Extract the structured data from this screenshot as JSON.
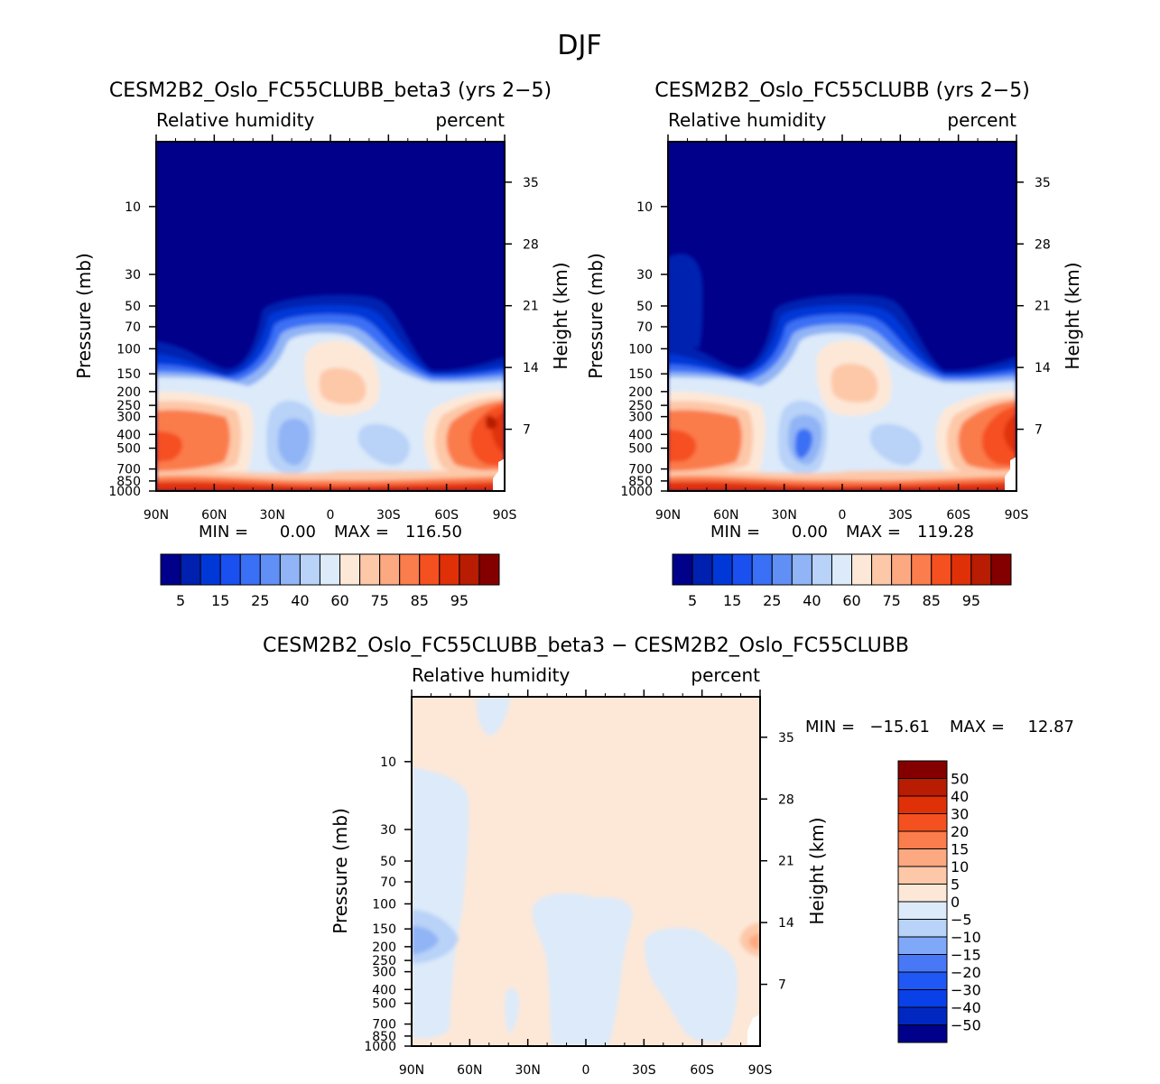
{
  "figure_title": "DJF",
  "chart_data": [
    {
      "type": "heatmap",
      "id": "p1",
      "title": "CESM2B2_Oslo_FC55CLUBB_beta3 (yrs 2−5)",
      "left_label": "Relative humidity",
      "right_label": "percent",
      "ylabel": "Pressure (mb)",
      "y2label": "Height (km)",
      "x_ticks": [
        "90N",
        "60N",
        "30N",
        "0",
        "30S",
        "60S",
        "90S"
      ],
      "y_ticks": [
        1000,
        850,
        700,
        500,
        400,
        300,
        250,
        200,
        150,
        100,
        70,
        50,
        30,
        10
      ],
      "y2_ticks": [
        7,
        14,
        21,
        28,
        35
      ],
      "ylim": [
        1000,
        3.5
      ],
      "min_label": "MIN =",
      "min_value": "0.00",
      "max_label": "MAX =",
      "max_value": "116.50",
      "colorbar": {
        "orientation": "horizontal",
        "colors": [
          "#00008a",
          "#0020b0",
          "#0038d8",
          "#1a50f0",
          "#3a70f5",
          "#6090f5",
          "#90b4f5",
          "#b8d2f8",
          "#dceafa",
          "#fde8d8",
          "#fdc8a8",
          "#fca880",
          "#fb7c4c",
          "#f55020",
          "#e03008",
          "#b81c02",
          "#840000"
        ],
        "labels": [
          "5",
          "15",
          "25",
          "40",
          "60",
          "75",
          "85",
          "95"
        ]
      }
    },
    {
      "type": "heatmap",
      "id": "p2",
      "title": "CESM2B2_Oslo_FC55CLUBB (yrs 2−5)",
      "left_label": "Relative humidity",
      "right_label": "percent",
      "ylabel": "Pressure (mb)",
      "y2label": "Height (km)",
      "x_ticks": [
        "90N",
        "60N",
        "30N",
        "0",
        "30S",
        "60S",
        "90S"
      ],
      "y_ticks": [
        1000,
        850,
        700,
        500,
        400,
        300,
        250,
        200,
        150,
        100,
        70,
        50,
        30,
        10
      ],
      "y2_ticks": [
        7,
        14,
        21,
        28,
        35
      ],
      "ylim": [
        1000,
        3.5
      ],
      "min_label": "MIN =",
      "min_value": "0.00",
      "max_label": "MAX =",
      "max_value": "119.28",
      "colorbar": {
        "orientation": "horizontal",
        "colors": [
          "#00008a",
          "#0020b0",
          "#0038d8",
          "#1a50f0",
          "#3a70f5",
          "#6090f5",
          "#90b4f5",
          "#b8d2f8",
          "#dceafa",
          "#fde8d8",
          "#fdc8a8",
          "#fca880",
          "#fb7c4c",
          "#f55020",
          "#e03008",
          "#b81c02",
          "#840000"
        ],
        "labels": [
          "5",
          "15",
          "25",
          "40",
          "60",
          "75",
          "85",
          "95"
        ]
      }
    },
    {
      "type": "heatmap",
      "id": "p3",
      "title": "CESM2B2_Oslo_FC55CLUBB_beta3 − CESM2B2_Oslo_FC55CLUBB",
      "left_label": "Relative humidity",
      "right_label": "percent",
      "ylabel": "Pressure (mb)",
      "y2label": "Height (km)",
      "x_ticks": [
        "90N",
        "60N",
        "30N",
        "0",
        "30S",
        "60S",
        "90S"
      ],
      "y_ticks": [
        1000,
        850,
        700,
        500,
        400,
        300,
        250,
        200,
        150,
        100,
        70,
        50,
        30,
        10
      ],
      "y2_ticks": [
        7,
        14,
        21,
        28,
        35
      ],
      "ylim": [
        1000,
        3.5
      ],
      "min_label": "MIN =",
      "min_value": "−15.61",
      "max_label": "MAX =",
      "max_value": "12.87",
      "colorbar": {
        "orientation": "vertical",
        "colors": [
          "#00008a",
          "#0028c0",
          "#0a40e8",
          "#2058f5",
          "#4878f5",
          "#80a8f8",
          "#b8d2f8",
          "#dceafa",
          "#fde8d8",
          "#fdc8a8",
          "#fca880",
          "#fb7c4c",
          "#f55020",
          "#e03008",
          "#b81c02",
          "#840000"
        ],
        "labels": [
          "−50",
          "−40",
          "−30",
          "−20",
          "−15",
          "−10",
          "−5",
          "0",
          "5",
          "10",
          "15",
          "20",
          "30",
          "40",
          "50"
        ]
      }
    }
  ]
}
